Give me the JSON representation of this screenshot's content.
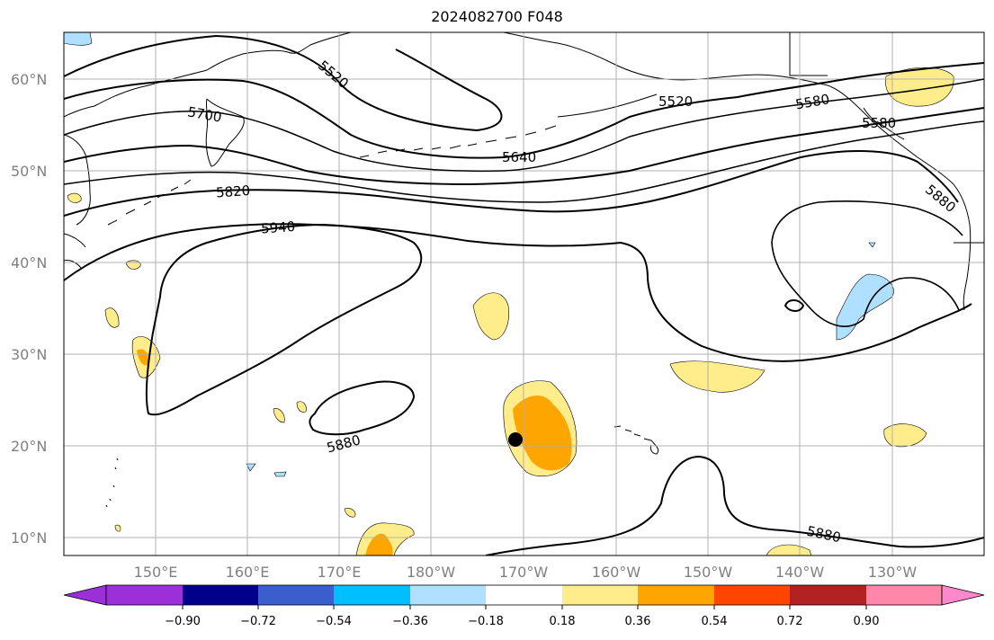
{
  "title": "2024082700 F048",
  "map": {
    "lat_labels": [
      "60°N",
      "50°N",
      "40°N",
      "30°N",
      "20°N",
      "10°N"
    ],
    "lon_labels": [
      "150°E",
      "160°E",
      "170°E",
      "180°W",
      "170°W",
      "160°W",
      "150°W",
      "140°W",
      "130°W"
    ],
    "contour_labels": [
      "5520",
      "5700",
      "5820",
      "5940",
      "5640",
      "5580",
      "5520",
      "5580",
      "5880",
      "5880",
      "5880"
    ],
    "colors": {
      "land_outline": "#000000",
      "grid": "#b0b0b0",
      "contour": "#000000",
      "marker": "#000000"
    }
  },
  "colorbar": {
    "ticks": [
      "−0.90",
      "−0.72",
      "−0.54",
      "−0.36",
      "−0.18",
      "0.18",
      "0.36",
      "0.54",
      "0.72",
      "0.90"
    ],
    "colors": [
      "#9b30d9",
      "#00008b",
      "#3a5fcd",
      "#00bfff",
      "#b0e0ff",
      "#ffffff",
      "#ffec8b",
      "#ffa500",
      "#ff4500",
      "#b22222",
      "#ff88aa",
      "#ff88cc"
    ]
  }
}
